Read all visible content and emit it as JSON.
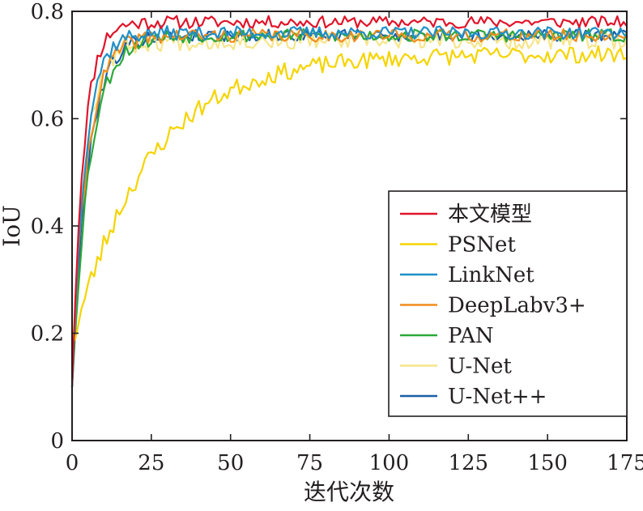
{
  "chart_data": {
    "type": "line",
    "title": "",
    "xlabel": "迭代次数",
    "ylabel": "IoU",
    "xlim": [
      0,
      175
    ],
    "ylim": [
      0,
      0.8
    ],
    "x_ticks": [
      0,
      25,
      50,
      75,
      100,
      125,
      150,
      175
    ],
    "y_ticks": [
      0,
      0.2,
      0.4,
      0.6,
      0.8
    ],
    "x_tick_labels": [
      "0",
      "25",
      "50",
      "75",
      "100",
      "125",
      "150",
      "175"
    ],
    "y_tick_labels": [
      "0",
      "0.2",
      "0.4",
      "0.6",
      "0.8"
    ],
    "grid": false,
    "legend_position": "bottom-right",
    "series": [
      {
        "name": "本文模型",
        "color": "#e0142a",
        "start": 0.1,
        "plateau": 0.78,
        "tau": 3.5,
        "noise": 0.011,
        "seed": 11
      },
      {
        "name": "PSNet",
        "color": "#f5d400",
        "start": 0.18,
        "plateau": 0.72,
        "tau": 24,
        "noise": 0.016,
        "seed": 23
      },
      {
        "name": "LinkNet",
        "color": "#1e90c8",
        "start": 0.1,
        "plateau": 0.76,
        "tau": 4.0,
        "noise": 0.012,
        "seed": 37
      },
      {
        "name": "DeepLabv3+",
        "color": "#f08c1e",
        "start": 0.12,
        "plateau": 0.755,
        "tau": 4.8,
        "noise": 0.012,
        "seed": 41
      },
      {
        "name": "PAN",
        "color": "#2ca838",
        "start": 0.1,
        "plateau": 0.755,
        "tau": 5.5,
        "noise": 0.012,
        "seed": 53
      },
      {
        "name": "U-Net",
        "color": "#f6e58a",
        "start": 0.14,
        "plateau": 0.745,
        "tau": 4.2,
        "noise": 0.016,
        "seed": 67
      },
      {
        "name": "U-Net++",
        "color": "#1a5fa8",
        "start": 0.1,
        "plateau": 0.755,
        "tau": 5.0,
        "noise": 0.011,
        "seed": 79
      }
    ]
  }
}
